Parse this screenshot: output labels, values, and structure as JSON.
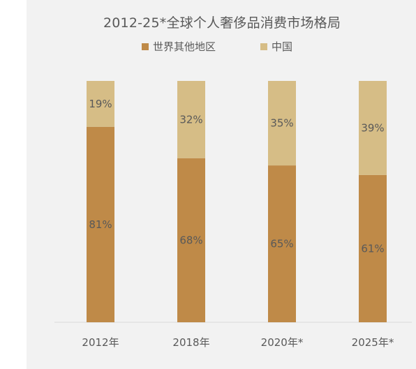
{
  "chart_data": {
    "type": "bar",
    "stacked": true,
    "title": "2012-25*全球个人奢侈品消费市场格局",
    "categories": [
      "2012年",
      "2018年",
      "2020年*",
      "2025年*"
    ],
    "series": [
      {
        "name": "世界其他地区",
        "values": [
          81,
          68,
          65,
          61
        ],
        "labels": [
          "81%",
          "68%",
          "65%",
          "61%"
        ],
        "color": "#bf8a48"
      },
      {
        "name": "中国",
        "values": [
          19,
          32,
          35,
          39
        ],
        "labels": [
          "19%",
          "32%",
          "35%",
          "39%"
        ],
        "color": "#d6bd86"
      }
    ],
    "ylim": [
      0,
      100
    ],
    "grid": false,
    "legend_position": "top"
  },
  "colors": {
    "panel_bg": "#f2f2f2",
    "axis_line": "#d9d9d9",
    "label_text": "#595959"
  }
}
